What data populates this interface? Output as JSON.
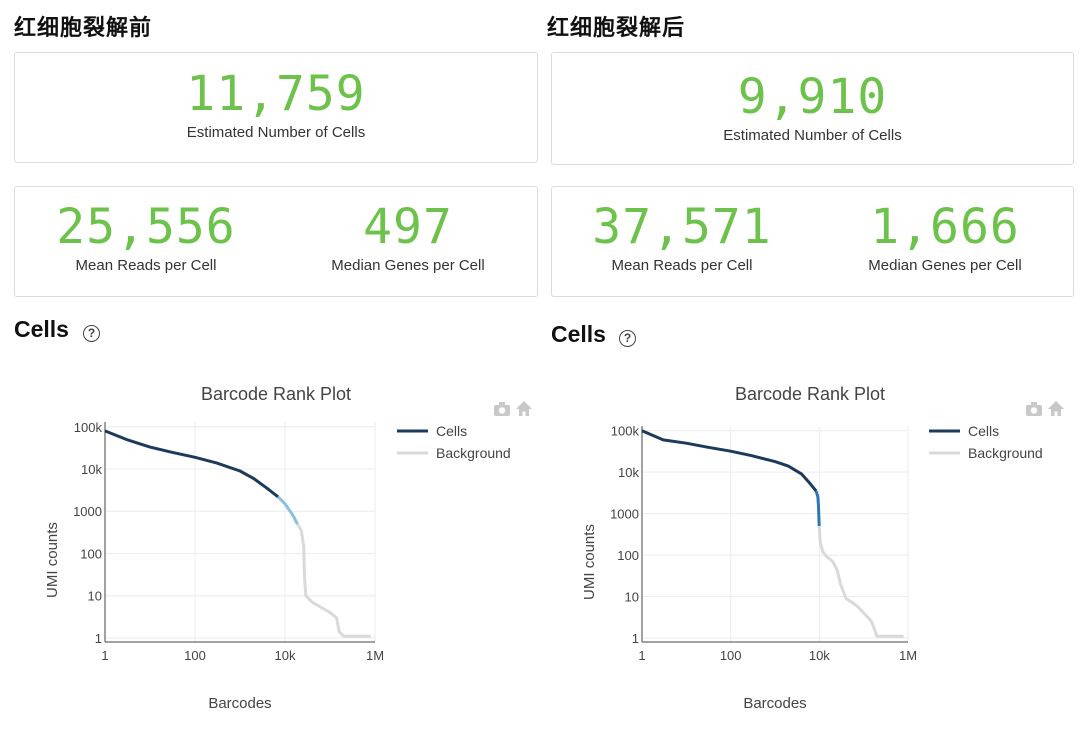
{
  "panels": [
    {
      "heading": "红细胞裂解前",
      "estimated_cells": {
        "value": "11,759",
        "label": "Estimated Number of Cells"
      },
      "mean_reads": {
        "value": "25,556",
        "label": "Mean Reads per Cell"
      },
      "median_genes": {
        "value": "497",
        "label": "Median Genes per Cell"
      },
      "cells_section": {
        "title": "Cells",
        "help": "?"
      }
    },
    {
      "heading": "红细胞裂解后",
      "estimated_cells": {
        "value": "9,910",
        "label": "Estimated Number of Cells"
      },
      "mean_reads": {
        "value": "37,571",
        "label": "Mean Reads per Cell"
      },
      "median_genes": {
        "value": "1,666",
        "label": "Median Genes per Cell"
      },
      "cells_section": {
        "title": "Cells",
        "help": "?"
      }
    }
  ],
  "chart_data": [
    {
      "type": "line",
      "title": "Barcode Rank Plot",
      "xlabel": "Barcodes",
      "ylabel": "UMI counts",
      "x_scale": "log",
      "y_scale": "log",
      "xlim": [
        1,
        1000000
      ],
      "ylim": [
        0.8,
        130000
      ],
      "x_ticks": [
        {
          "v": 1,
          "label": "1"
        },
        {
          "v": 100,
          "label": "100"
        },
        {
          "v": 10000,
          "label": "10k"
        },
        {
          "v": 1000000,
          "label": "1M"
        }
      ],
      "y_ticks": [
        {
          "v": 1,
          "label": "1"
        },
        {
          "v": 10,
          "label": "10"
        },
        {
          "v": 100,
          "label": "100"
        },
        {
          "v": 1000,
          "label": "1000"
        },
        {
          "v": 10000,
          "label": "10k"
        },
        {
          "v": 100000,
          "label": "100k"
        }
      ],
      "grid": true,
      "legend_position": "right",
      "series": [
        {
          "name": "Cells",
          "color": "#1b3a5c",
          "width": 3,
          "points": [
            [
              1,
              80000
            ],
            [
              3,
              50000
            ],
            [
              10,
              33000
            ],
            [
              30,
              25000
            ],
            [
              100,
              19000
            ],
            [
              300,
              14000
            ],
            [
              1000,
              9000
            ],
            [
              2000,
              6000
            ],
            [
              4000,
              3500
            ],
            [
              7000,
              2200
            ]
          ]
        },
        {
          "name": "",
          "color": "#89bfe0",
          "width": 3,
          "points": [
            [
              7000,
              2200
            ],
            [
              10000,
              1500
            ],
            [
              15000,
              800
            ],
            [
              19000,
              500
            ]
          ]
        },
        {
          "name": "Background",
          "color": "#d9d9d9",
          "width": 3,
          "points": [
            [
              19000,
              500
            ],
            [
              23000,
              350
            ],
            [
              26000,
              150
            ],
            [
              27000,
              30
            ],
            [
              29000,
              10
            ],
            [
              40000,
              7
            ],
            [
              70000,
              5
            ],
            [
              100000,
              4
            ],
            [
              140000,
              3
            ],
            [
              160000,
              1.4
            ],
            [
              200000,
              1.1
            ],
            [
              800000,
              1.1
            ]
          ]
        }
      ]
    },
    {
      "type": "line",
      "title": "Barcode Rank Plot",
      "xlabel": "Barcodes",
      "ylabel": "UMI counts",
      "x_scale": "log",
      "y_scale": "log",
      "xlim": [
        1,
        1000000
      ],
      "ylim": [
        0.8,
        130000
      ],
      "x_ticks": [
        {
          "v": 1,
          "label": "1"
        },
        {
          "v": 100,
          "label": "100"
        },
        {
          "v": 10000,
          "label": "10k"
        },
        {
          "v": 1000000,
          "label": "1M"
        }
      ],
      "y_ticks": [
        {
          "v": 1,
          "label": "1"
        },
        {
          "v": 10,
          "label": "10"
        },
        {
          "v": 100,
          "label": "100"
        },
        {
          "v": 1000,
          "label": "1000"
        },
        {
          "v": 10000,
          "label": "10k"
        },
        {
          "v": 100000,
          "label": "100k"
        }
      ],
      "grid": true,
      "legend_position": "right",
      "series": [
        {
          "name": "Cells",
          "color": "#1b3a5c",
          "width": 3,
          "points": [
            [
              1,
              100000
            ],
            [
              3,
              60000
            ],
            [
              10,
              50000
            ],
            [
              30,
              40000
            ],
            [
              100,
              32000
            ],
            [
              300,
              25000
            ],
            [
              1000,
              18000
            ],
            [
              2000,
              14000
            ],
            [
              4000,
              9000
            ],
            [
              6000,
              5500
            ],
            [
              8500,
              3500
            ]
          ]
        },
        {
          "name": "",
          "color": "#2e75b6",
          "width": 3,
          "points": [
            [
              8500,
              3500
            ],
            [
              9300,
              2500
            ],
            [
              9600,
              1500
            ],
            [
              9910,
              500
            ]
          ]
        },
        {
          "name": "Background",
          "color": "#d9d9d9",
          "width": 3,
          "points": [
            [
              9910,
              500
            ],
            [
              10500,
              200
            ],
            [
              12000,
              120
            ],
            [
              15000,
              90
            ],
            [
              20000,
              70
            ],
            [
              25000,
              45
            ],
            [
              30000,
              20
            ],
            [
              40000,
              9
            ],
            [
              70000,
              6
            ],
            [
              100000,
              4
            ],
            [
              150000,
              2.5
            ],
            [
              200000,
              1.1
            ],
            [
              800000,
              1.1
            ]
          ]
        }
      ]
    }
  ]
}
